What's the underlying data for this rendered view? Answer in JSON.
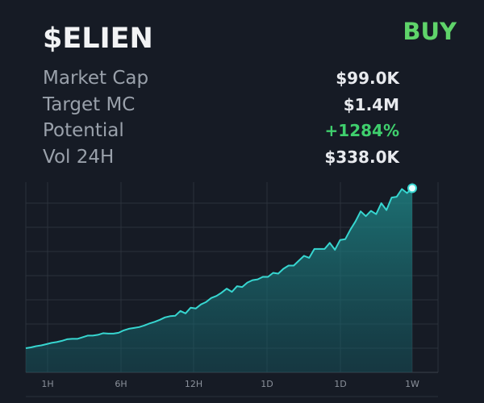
{
  "token": {
    "ticker": "$ELIEN",
    "buy_label": "BUY"
  },
  "stats": [
    {
      "label": "Market Cap",
      "value": "$99.0K",
      "positive": false
    },
    {
      "label": "Target MC",
      "value": "$1.4M",
      "positive": false
    },
    {
      "label": "Potential",
      "value": "+1284%",
      "positive": true
    },
    {
      "label": "Vol 24H",
      "value": "$338.0K",
      "positive": false
    }
  ],
  "colors": {
    "background": "#161b25",
    "buy": "#5fd46a",
    "positive": "#3fcf6d",
    "line": "#37d6d0",
    "grid": "#2b313c"
  },
  "chart_data": {
    "type": "area",
    "categories": [
      "1H",
      "6H",
      "12H",
      "1D",
      "1D",
      "1W"
    ],
    "x": [
      0,
      0.8,
      1.6,
      2.4,
      3.2,
      4.0,
      4.8,
      5.6,
      6.4,
      7.2,
      8.0,
      8.8,
      9.6,
      10.4,
      11.2,
      12.0,
      12.8,
      13.6,
      14.4,
      15.2,
      16.0,
      16.8,
      17.6,
      18.4,
      19.2,
      20.0,
      20.8,
      21.6,
      22.4,
      23.2,
      24.0,
      24.8,
      25.6,
      26.4,
      27.2,
      28.0,
      28.8,
      29.6,
      30.4,
      31.2,
      32.0,
      32.8,
      33.6,
      34.4,
      35.2,
      36.0,
      36.8,
      37.6,
      38.4,
      39.2,
      40.0,
      40.8,
      41.6,
      42.4,
      43.2,
      44.0,
      44.8,
      45.6,
      46.4,
      47.2,
      48.0,
      48.8,
      49.6,
      50.4,
      51.2,
      52.0,
      52.8,
      53.6,
      54.4,
      55.2,
      56.0,
      56.8,
      57.6,
      58.4,
      59.2,
      60.0
    ],
    "values": [
      1.0,
      1.2,
      1.5,
      1.7,
      2.0,
      2.3,
      2.5,
      2.8,
      3.2,
      3.3,
      3.3,
      3.7,
      4.1,
      4.1,
      4.3,
      4.7,
      4.6,
      4.6,
      4.8,
      5.4,
      5.8,
      6.0,
      6.2,
      6.6,
      7.1,
      7.5,
      8.0,
      8.6,
      8.9,
      9.0,
      10.2,
      9.6,
      11.0,
      10.8,
      11.8,
      12.4,
      13.4,
      13.9,
      14.7,
      15.7,
      14.9,
      16.3,
      16.1,
      17.2,
      17.8,
      18.0,
      18.6,
      18.6,
      19.6,
      19.4,
      20.6,
      21.4,
      21.4,
      22.6,
      23.8,
      23.3,
      25.5,
      25.5,
      25.5,
      27.0,
      25.3,
      27.7,
      27.9,
      30.3,
      32.3,
      34.8,
      33.6,
      34.9,
      34.1,
      36.8,
      35.1,
      38.2,
      38.4,
      40.3,
      39.3,
      40.5
    ],
    "ylim": [
      0,
      41
    ],
    "grid": true,
    "marker_on_last": true
  }
}
